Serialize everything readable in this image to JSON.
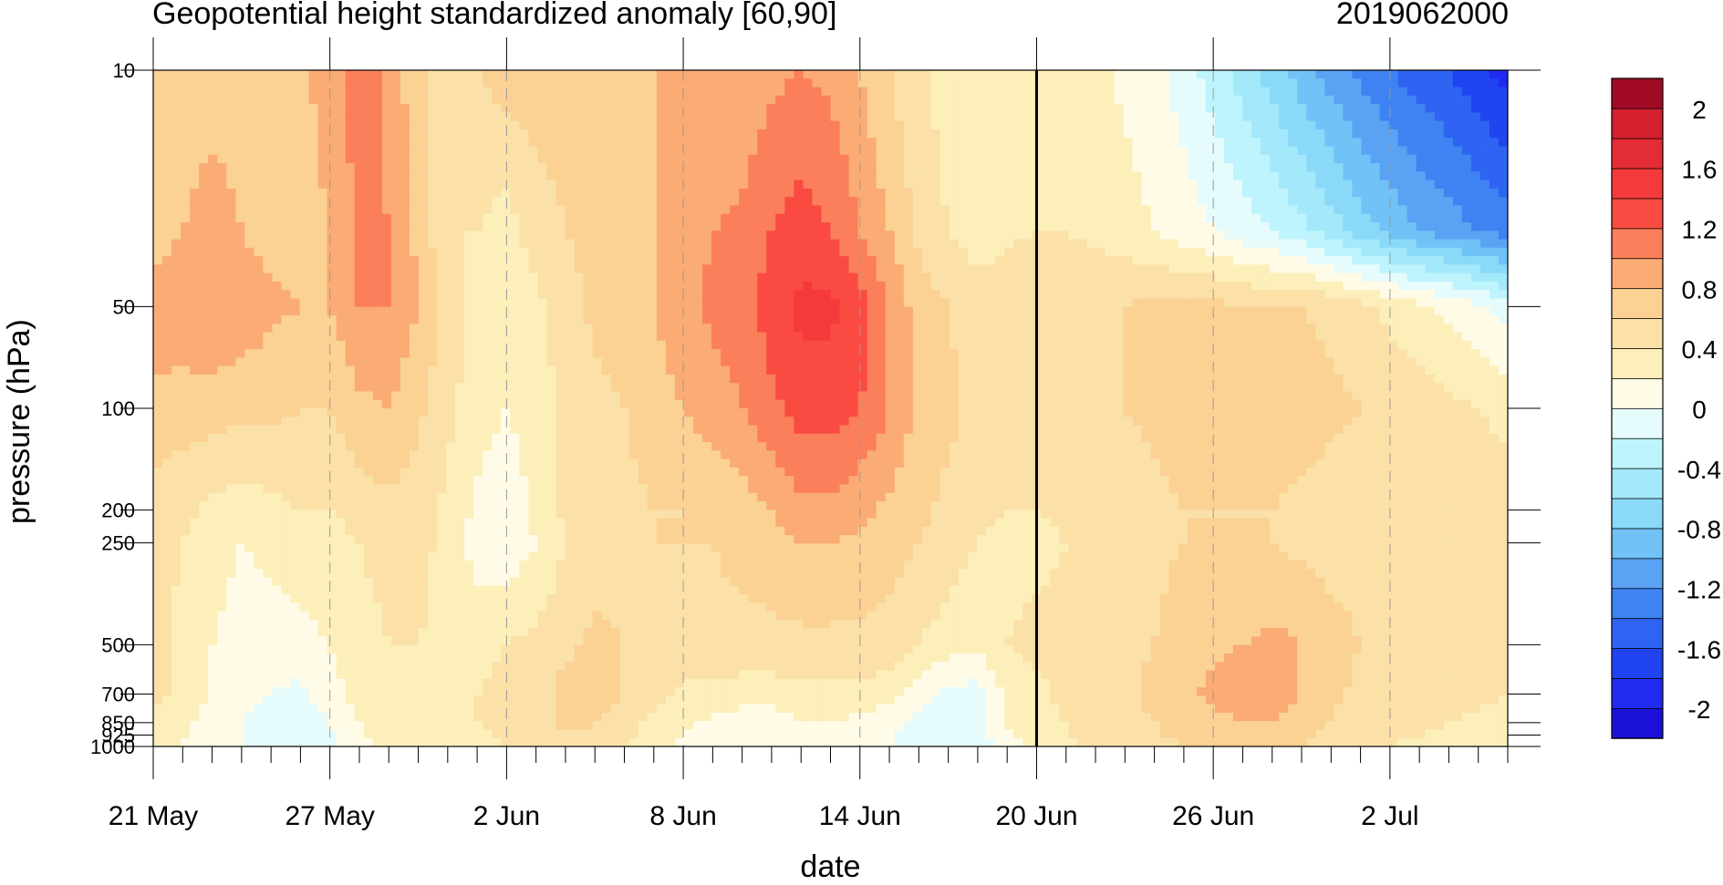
{
  "chart_data": {
    "type": "heatmap",
    "title_left": "Geopotential height standardized anomaly [60,90]",
    "title_right": "2019062000",
    "xlabel": "date",
    "ylabel": "pressure (hPa)",
    "x_ticks": [
      "21 May",
      "27 May",
      "2 Jun",
      "8 Jun",
      "14 Jun",
      "20 Jun",
      "26 Jun",
      "2 Jul"
    ],
    "x_range": [
      "2019-05-21",
      "2019-07-06"
    ],
    "y_scale": "log",
    "y_ticks": [
      10,
      50,
      100,
      200,
      250,
      500,
      700,
      850,
      925,
      1000
    ],
    "y_ticks_shown": [
      "10",
      "50",
      "100",
      "200",
      "250",
      "500",
      "700",
      "850",
      "925",
      "1000"
    ],
    "y_range": [
      1000,
      10
    ],
    "colorbar_labels": [
      "2",
      "1.6",
      "1.2",
      "0.8",
      "0.4",
      "0",
      "-0.4",
      "-0.8",
      "-1.2",
      "-1.6",
      "-2"
    ],
    "colorbar_levels": [
      -2.2,
      -2,
      -1.8,
      -1.6,
      -1.4,
      -1.2,
      -1.0,
      -0.8,
      -0.6,
      -0.4,
      -0.2,
      0,
      0.2,
      0.4,
      0.6,
      0.8,
      1.0,
      1.2,
      1.4,
      1.6,
      1.8,
      2.0,
      2.2
    ],
    "colorbar_colors": [
      "#1a10d8",
      "#1f2bef",
      "#1f44f0",
      "#2f63f2",
      "#3f83f2",
      "#5aa2f4",
      "#70c2f7",
      "#8ad9f9",
      "#a3e8fb",
      "#bdf4fd",
      "#e6fbfc",
      "#fffbe6",
      "#fcefba",
      "#fbe1a7",
      "#fbd194",
      "#fbab74",
      "#fb7f5a",
      "#fa4b42",
      "#f53a3b",
      "#e42c35",
      "#d4202f",
      "#a20b25"
    ],
    "forecast_start": "2019-06-20",
    "series": [
      {
        "name": "",
        "pressure": 10,
        "values": [
          0.7,
          0.7,
          0.7,
          0.7,
          0.7,
          0.75,
          0.9,
          1.1,
          0.95,
          0.65,
          0.4,
          0.6,
          0.7,
          0.7,
          0.7,
          0.7,
          0.75,
          0.8,
          0.8,
          0.8,
          0.85,
          0.95,
          1.0,
          0.95,
          0.8,
          0.6,
          0.45,
          0.3,
          0.25,
          0.3,
          0.3,
          0.35,
          0.25,
          0.15,
          0.05,
          -0.1,
          -0.3,
          -0.5,
          -0.7,
          -0.9,
          -1.1,
          -1.25,
          -1.4,
          -1.5,
          -1.6,
          -1.75,
          -1.9
        ]
      },
      {
        "name": "",
        "pressure": 30,
        "values": [
          0.7,
          0.8,
          0.9,
          0.8,
          0.7,
          0.7,
          0.8,
          1.05,
          1.0,
          0.75,
          0.4,
          0.4,
          0.3,
          0.5,
          0.6,
          0.7,
          0.75,
          0.8,
          0.9,
          1.0,
          1.05,
          1.2,
          1.3,
          1.2,
          1.0,
          0.8,
          0.55,
          0.4,
          0.3,
          0.35,
          0.4,
          0.4,
          0.35,
          0.3,
          0.2,
          0.1,
          0.0,
          -0.1,
          -0.2,
          -0.35,
          -0.5,
          -0.7,
          -0.85,
          -1.0,
          -1.1,
          -1.2,
          -1.3
        ]
      },
      {
        "name": "",
        "pressure": 50,
        "values": [
          0.9,
          0.95,
          1.0,
          0.95,
          0.85,
          0.8,
          0.8,
          1.0,
          1.0,
          0.8,
          0.5,
          0.35,
          0.25,
          0.35,
          0.5,
          0.65,
          0.7,
          0.8,
          0.95,
          1.05,
          1.1,
          1.3,
          1.45,
          1.45,
          1.3,
          1.0,
          0.7,
          0.6,
          0.5,
          0.55,
          0.6,
          0.55,
          0.55,
          0.6,
          0.65,
          0.65,
          0.65,
          0.6,
          0.6,
          0.6,
          0.55,
          0.45,
          0.35,
          0.25,
          0.15,
          0.05,
          -0.1
        ]
      },
      {
        "name": "",
        "pressure": 100,
        "values": [
          0.75,
          0.7,
          0.7,
          0.65,
          0.65,
          0.6,
          0.6,
          0.75,
          0.8,
          0.65,
          0.45,
          0.3,
          0.2,
          0.3,
          0.45,
          0.55,
          0.6,
          0.7,
          0.8,
          0.9,
          1.0,
          1.15,
          1.3,
          1.3,
          1.2,
          1.0,
          0.75,
          0.65,
          0.55,
          0.5,
          0.5,
          0.5,
          0.55,
          0.6,
          0.65,
          0.7,
          0.7,
          0.7,
          0.7,
          0.7,
          0.65,
          0.6,
          0.55,
          0.5,
          0.45,
          0.4,
          0.35
        ]
      },
      {
        "name": "",
        "pressure": 200,
        "values": [
          0.5,
          0.45,
          0.35,
          0.3,
          0.35,
          0.4,
          0.4,
          0.5,
          0.55,
          0.5,
          0.35,
          0.15,
          0.05,
          0.25,
          0.45,
          0.5,
          0.55,
          0.6,
          0.6,
          0.65,
          0.7,
          0.8,
          0.95,
          0.95,
          0.85,
          0.75,
          0.65,
          0.55,
          0.45,
          0.4,
          0.4,
          0.45,
          0.45,
          0.5,
          0.55,
          0.6,
          0.6,
          0.6,
          0.6,
          0.55,
          0.5,
          0.5,
          0.5,
          0.5,
          0.5,
          0.5,
          0.5
        ]
      },
      {
        "name": "",
        "pressure": 250,
        "values": [
          0.5,
          0.4,
          0.3,
          0.2,
          0.25,
          0.3,
          0.3,
          0.4,
          0.45,
          0.45,
          0.35,
          0.1,
          0.05,
          0.2,
          0.4,
          0.5,
          0.55,
          0.6,
          0.6,
          0.6,
          0.65,
          0.7,
          0.8,
          0.8,
          0.75,
          0.7,
          0.6,
          0.5,
          0.4,
          0.35,
          0.35,
          0.4,
          0.45,
          0.5,
          0.55,
          0.6,
          0.6,
          0.6,
          0.6,
          0.55,
          0.5,
          0.5,
          0.5,
          0.5,
          0.5,
          0.5,
          0.5
        ]
      },
      {
        "name": "",
        "pressure": 500,
        "values": [
          0.45,
          0.35,
          0.2,
          0.1,
          0.1,
          0.15,
          0.2,
          0.35,
          0.4,
          0.4,
          0.35,
          0.35,
          0.4,
          0.45,
          0.55,
          0.65,
          0.6,
          0.55,
          0.55,
          0.55,
          0.55,
          0.55,
          0.55,
          0.55,
          0.55,
          0.5,
          0.4,
          0.3,
          0.25,
          0.4,
          0.45,
          0.45,
          0.5,
          0.55,
          0.6,
          0.7,
          0.75,
          0.8,
          0.85,
          0.8,
          0.7,
          0.6,
          0.55,
          0.5,
          0.5,
          0.5,
          0.5
        ]
      },
      {
        "name": "",
        "pressure": 700,
        "values": [
          0.45,
          0.35,
          0.2,
          0.05,
          0.0,
          -0.05,
          0.1,
          0.3,
          0.35,
          0.35,
          0.35,
          0.4,
          0.45,
          0.5,
          0.7,
          0.7,
          0.6,
          0.45,
          0.35,
          0.35,
          0.3,
          0.3,
          0.35,
          0.35,
          0.35,
          0.3,
          0.1,
          -0.05,
          -0.1,
          0.25,
          0.35,
          0.45,
          0.5,
          0.55,
          0.65,
          0.75,
          0.85,
          0.9,
          0.9,
          0.8,
          0.65,
          0.55,
          0.5,
          0.5,
          0.5,
          0.45,
          0.4
        ]
      },
      {
        "name": "",
        "pressure": 850,
        "values": [
          0.35,
          0.25,
          0.1,
          0.0,
          -0.05,
          -0.1,
          0.0,
          0.2,
          0.3,
          0.3,
          0.35,
          0.4,
          0.45,
          0.5,
          0.65,
          0.6,
          0.5,
          0.35,
          0.25,
          0.15,
          0.1,
          0.1,
          0.2,
          0.2,
          0.15,
          0.05,
          -0.05,
          -0.15,
          -0.1,
          0.2,
          0.3,
          0.4,
          0.5,
          0.55,
          0.6,
          0.7,
          0.75,
          0.8,
          0.8,
          0.7,
          0.6,
          0.5,
          0.45,
          0.45,
          0.4,
          0.35,
          0.3
        ]
      },
      {
        "name": "",
        "pressure": 1000,
        "values": [
          0.3,
          0.2,
          0.05,
          0.0,
          -0.1,
          -0.15,
          -0.05,
          0.15,
          0.25,
          0.25,
          0.3,
          0.35,
          0.4,
          0.45,
          0.55,
          0.5,
          0.4,
          0.25,
          0.15,
          0.05,
          0.0,
          0.0,
          0.05,
          0.05,
          0.05,
          0.0,
          -0.1,
          -0.2,
          -0.15,
          0.15,
          0.25,
          0.35,
          0.45,
          0.5,
          0.55,
          0.6,
          0.65,
          0.7,
          0.7,
          0.6,
          0.5,
          0.45,
          0.4,
          0.35,
          0.3,
          0.25,
          0.2
        ]
      }
    ]
  }
}
